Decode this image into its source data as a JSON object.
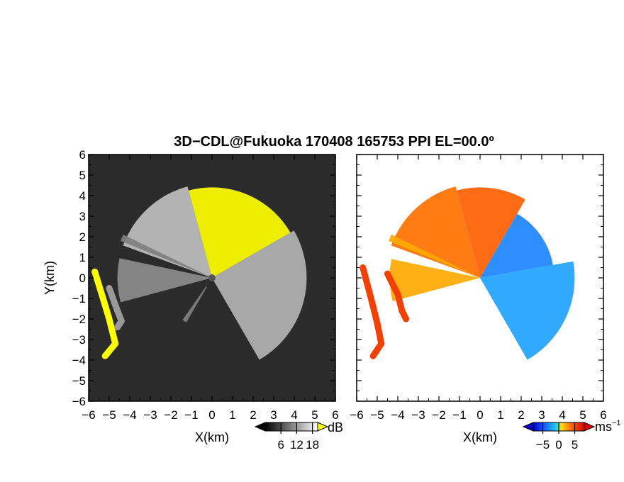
{
  "title": "3D−CDL@Fukuoka 170408 165753 PPI EL=00.0º",
  "chart_data": [
    {
      "type": "heatmap",
      "panel": "reflectivity",
      "xlabel": "X(km)",
      "ylabel": "Y(km)",
      "xlim": [
        -6,
        6
      ],
      "ylim": [
        -6,
        6
      ],
      "xticks": [
        "−6",
        "−5",
        "−4",
        "−3",
        "−2",
        "−1",
        "0",
        "1",
        "2",
        "3",
        "4",
        "5",
        "6"
      ],
      "yticks": [
        "−6",
        "−5",
        "−4",
        "−3",
        "−2",
        "−1",
        "0",
        "1",
        "2",
        "3",
        "4",
        "5",
        "6"
      ],
      "background_color": "#2b2b2b",
      "colorbar": {
        "unit": "dB",
        "tick_labels": [
          "6",
          "12",
          "18"
        ],
        "ticks": [
          6,
          12,
          18
        ],
        "range": [
          0,
          20
        ],
        "colors": [
          "#000000",
          "#ffffff"
        ],
        "over_color": "#ffff00"
      },
      "radar_center": [
        0,
        0
      ],
      "regions": [
        {
          "kind": "sector",
          "az_from": 290,
          "az_to": 345,
          "r_from": 0,
          "r_to": 4.6,
          "value": 15
        },
        {
          "kind": "sector",
          "az_from": 345,
          "az_to": 60,
          "r_from": 0,
          "r_to": 4.4,
          "value": 20
        },
        {
          "kind": "sector",
          "az_from": 60,
          "az_to": 150,
          "r_from": 0,
          "r_to": 4.6,
          "value": 14
        },
        {
          "kind": "sector",
          "az_from": 255,
          "az_to": 282,
          "r_from": 0,
          "r_to": 4.6,
          "value": 11
        },
        {
          "kind": "sector",
          "az_from": 292,
          "az_to": 296,
          "r_from": 0,
          "r_to": 4.8,
          "value": 10
        },
        {
          "kind": "sector",
          "az_from": 210,
          "az_to": 215,
          "r_from": 0.5,
          "r_to": 2.5,
          "value": 10
        },
        {
          "kind": "strip",
          "points": [
            [
              -5.7,
              0.3
            ],
            [
              -5.3,
              -1.0
            ],
            [
              -5.0,
              -2.0
            ],
            [
              -4.7,
              -3.2
            ],
            [
              -5.2,
              -3.8
            ]
          ],
          "value": 20
        },
        {
          "kind": "strip",
          "points": [
            [
              -5.0,
              -0.5
            ],
            [
              -4.6,
              -1.6
            ],
            [
              -4.4,
              -2.1
            ],
            [
              -4.6,
              -2.4
            ]
          ],
          "value": 12
        }
      ]
    },
    {
      "type": "heatmap",
      "panel": "doppler-velocity",
      "xlabel": "X(km)",
      "ylabel": "",
      "xlim": [
        -6,
        6
      ],
      "ylim": [
        -6,
        6
      ],
      "xticks": [
        "−6",
        "−5",
        "−4",
        "−3",
        "−2",
        "−1",
        "0",
        "1",
        "2",
        "3",
        "4",
        "5",
        "6"
      ],
      "background_color": "#ffffff",
      "colorbar": {
        "unit": "ms",
        "unit_exponent": "−1",
        "tick_labels": [
          "−5",
          "0",
          "5"
        ],
        "ticks": [
          -5,
          0,
          5
        ],
        "range": [
          -8,
          8
        ],
        "colors": [
          "#0000cc",
          "#1a6cff",
          "#22ccff",
          "#ffdd00",
          "#ff6600",
          "#dd0000"
        ]
      },
      "radar_center": [
        0,
        0
      ],
      "regions": [
        {
          "kind": "sector",
          "az_from": 290,
          "az_to": 345,
          "r_from": 0,
          "r_to": 4.6,
          "value": 4.5
        },
        {
          "kind": "sector",
          "az_from": 345,
          "az_to": 30,
          "r_from": 0,
          "r_to": 4.4,
          "value": 5
        },
        {
          "kind": "sector",
          "az_from": 30,
          "az_to": 80,
          "r_from": 0,
          "r_to": 3.6,
          "value": -4
        },
        {
          "kind": "sector",
          "az_from": 80,
          "az_to": 150,
          "r_from": 0,
          "r_to": 4.6,
          "value": -3
        },
        {
          "kind": "sector",
          "az_from": 255,
          "az_to": 282,
          "r_from": 0,
          "r_to": 4.4,
          "value": 3
        },
        {
          "kind": "sector",
          "az_from": 292,
          "az_to": 296,
          "r_from": 0,
          "r_to": 4.8,
          "value": 3
        },
        {
          "kind": "strip",
          "points": [
            [
              -5.7,
              0.5
            ],
            [
              -5.3,
              -1.0
            ],
            [
              -5.0,
              -2.2
            ],
            [
              -4.8,
              -3.2
            ],
            [
              -5.2,
              -3.8
            ]
          ],
          "value": 6
        },
        {
          "kind": "strip",
          "points": [
            [
              -4.5,
              0.2
            ],
            [
              -4.0,
              -0.8
            ],
            [
              -3.8,
              -1.6
            ],
            [
              -3.6,
              -2.0
            ]
          ],
          "value": 6
        }
      ]
    }
  ]
}
